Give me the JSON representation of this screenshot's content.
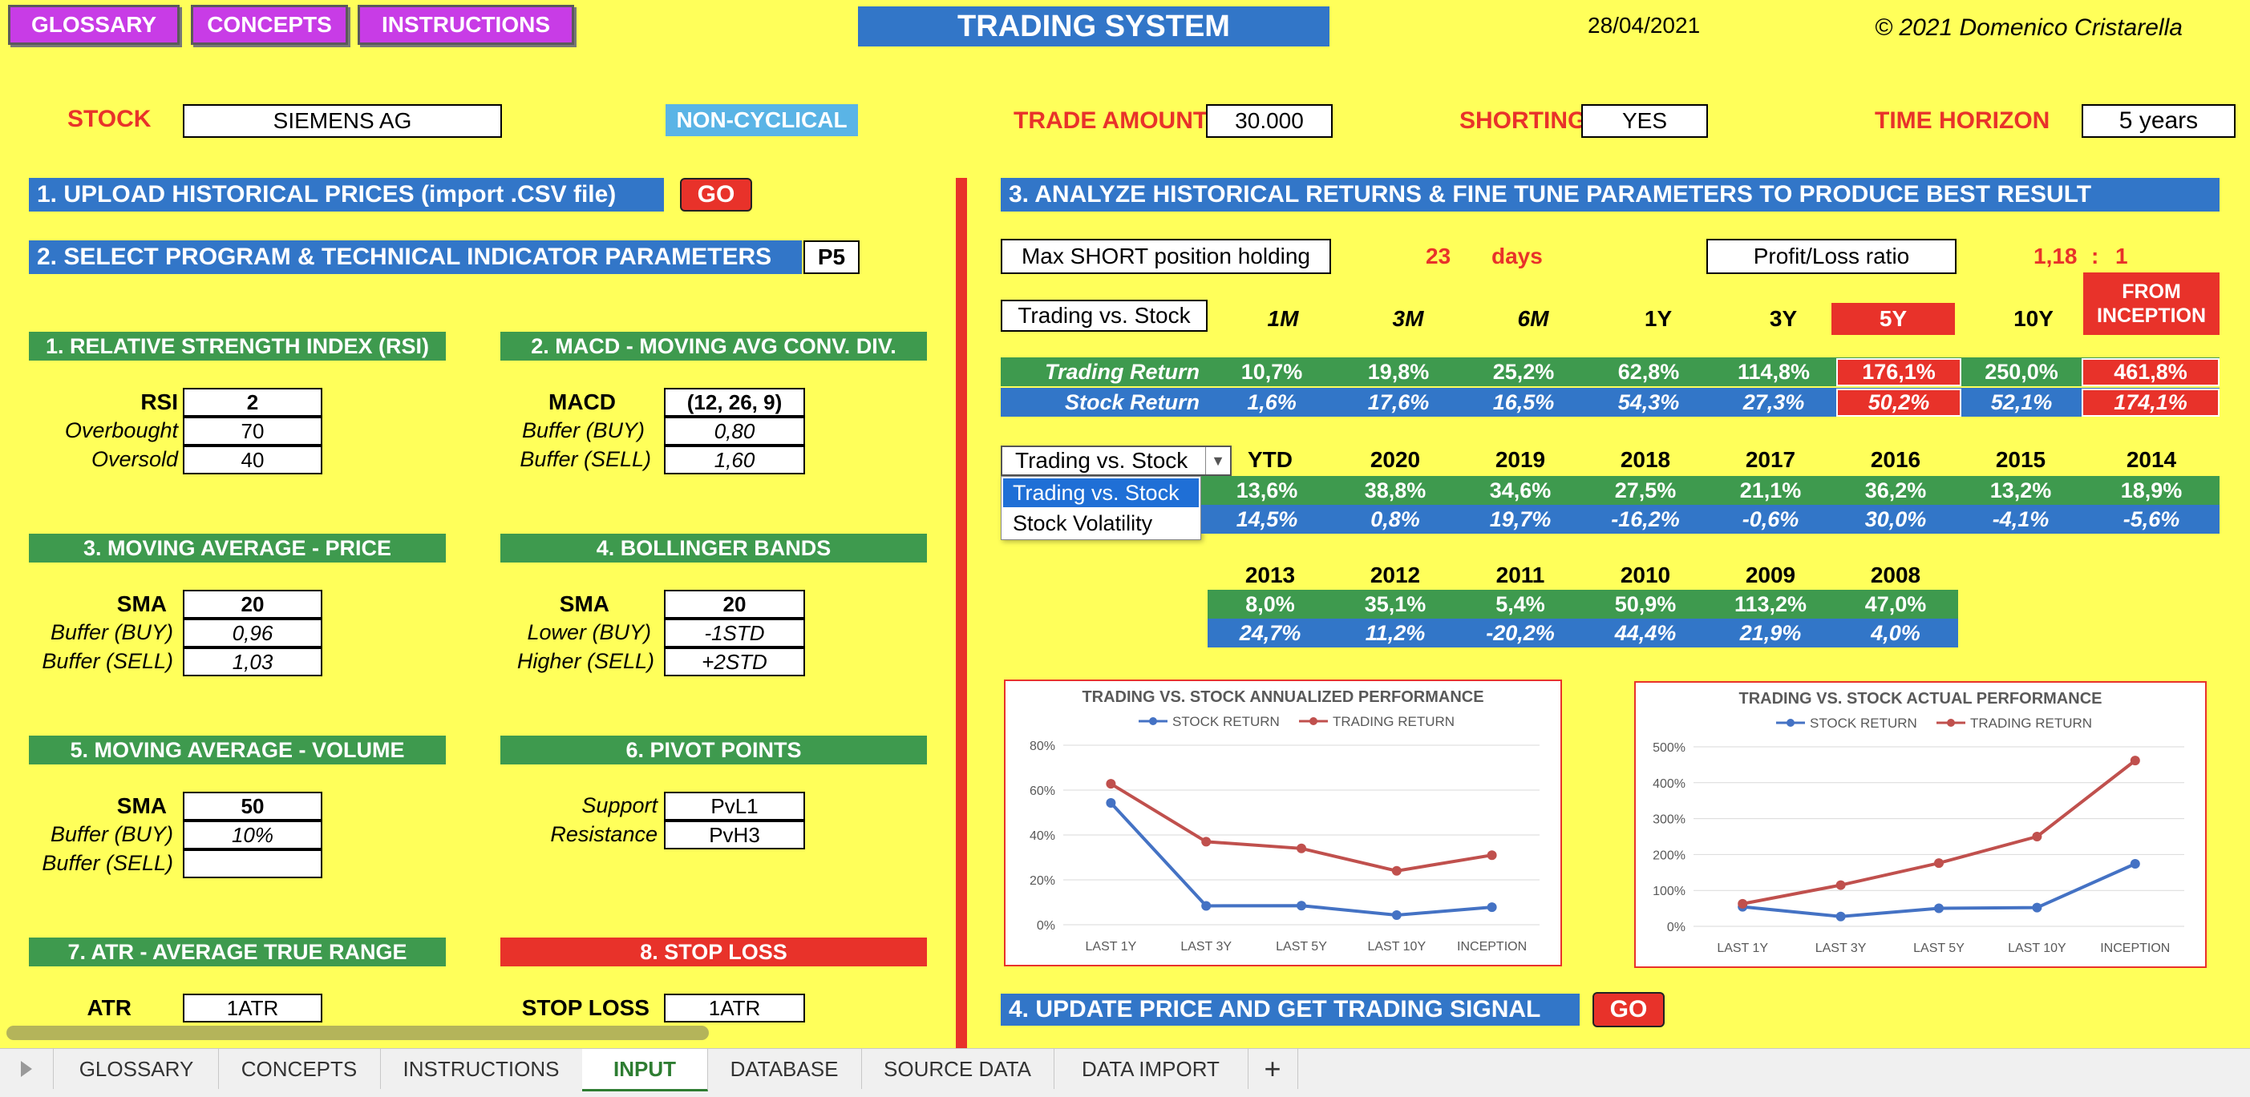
{
  "top_buttons": {
    "glossary": "GLOSSARY",
    "concepts": "CONCEPTS",
    "instructions": "INSTRUCTIONS"
  },
  "title": "TRADING SYSTEM",
  "date": "28/04/2021",
  "copyright": "© 2021 Domenico Cristarella",
  "info": {
    "stock_label": "STOCK",
    "stock_value": "SIEMENS AG",
    "category": "NON-CYCLICAL",
    "trade_amount_label": "TRADE AMOUNT",
    "trade_amount_value": "30.000",
    "shorting_label": "SHORTING",
    "shorting_value": "YES",
    "time_horizon_label": "TIME HORIZON",
    "time_horizon_value": "5 years"
  },
  "step1": {
    "label": "1. UPLOAD HISTORICAL PRICES (import .CSV file)",
    "go": "GO"
  },
  "step2": {
    "label": "2. SELECT PROGRAM & TECHNICAL INDICATOR PARAMETERS",
    "program": "P5"
  },
  "panels": {
    "rsi": {
      "header": "1. RELATIVE STRENGTH INDEX (RSI)",
      "l1": "RSI",
      "v1": "2",
      "l2": "Overbought",
      "v2": "70",
      "l3": "Oversold",
      "v3": "40"
    },
    "macd": {
      "header": "2. MACD - MOVING AVG CONV. DIV.",
      "l1": "MACD",
      "v1": "(12, 26, 9)",
      "l2": "Buffer (BUY)",
      "v2": "0,80",
      "l3": "Buffer (SELL)",
      "v3": "1,60"
    },
    "ma_price": {
      "header": "3. MOVING AVERAGE - PRICE",
      "l1": "SMA",
      "v1": "20",
      "l2": "Buffer (BUY)",
      "v2": "0,96",
      "l3": "Buffer (SELL)",
      "v3": "1,03"
    },
    "bollinger": {
      "header": "4. BOLLINGER BANDS",
      "l1": "SMA",
      "v1": "20",
      "l2": "Lower (BUY)",
      "v2": "-1STD",
      "l3": "Higher (SELL)",
      "v3": "+2STD"
    },
    "ma_volume": {
      "header": "5. MOVING AVERAGE - VOLUME",
      "l1": "SMA",
      "v1": "50",
      "l2": "Buffer (BUY)",
      "v2": "10%",
      "l3": "Buffer (SELL)",
      "v3": ""
    },
    "pivot": {
      "header": "6. PIVOT POINTS",
      "l1": "Support",
      "v1": "PvL1",
      "l2": "Resistance",
      "v2": "PvH3"
    },
    "atr": {
      "header": "7. ATR - AVERAGE TRUE RANGE",
      "l1": "ATR",
      "v1": "1ATR"
    },
    "stoploss": {
      "header": "8. STOP LOSS",
      "l1": "STOP LOSS",
      "v1": "1ATR"
    }
  },
  "step3": {
    "label": "3. ANALYZE HISTORICAL RETURNS & FINE TUNE PARAMETERS TO PRODUCE BEST RESULT"
  },
  "max_short": {
    "label": "Max SHORT position holding",
    "value": "23",
    "unit": "days"
  },
  "pl_ratio": {
    "label": "Profit/Loss ratio",
    "value": "1,18",
    "sep": ":",
    "right": "1"
  },
  "periods": {
    "selector": "Trading vs. Stock",
    "headers": [
      "1M",
      "3M",
      "6M",
      "1Y",
      "3Y",
      "5Y",
      "10Y",
      "FROM INCEPTION"
    ],
    "trading_label": "Trading Return",
    "stock_label": "Stock Return",
    "trading": [
      "10,7%",
      "19,8%",
      "25,2%",
      "62,8%",
      "114,8%",
      "176,1%",
      "250,0%",
      "461,8%"
    ],
    "stock": [
      "1,6%",
      "17,6%",
      "16,5%",
      "54,3%",
      "27,3%",
      "50,2%",
      "52,1%",
      "174,1%"
    ]
  },
  "years1": {
    "dropdown_value": "Trading vs. Stock",
    "options": [
      "Trading vs. Stock",
      "Stock Volatility"
    ],
    "headers": [
      "YTD",
      "2020",
      "2019",
      "2018",
      "2017",
      "2016",
      "2015",
      "2014"
    ],
    "trading": [
      "13,6%",
      "38,8%",
      "34,6%",
      "27,5%",
      "21,1%",
      "36,2%",
      "13,2%",
      "18,9%"
    ],
    "stock": [
      "14,5%",
      "0,8%",
      "19,7%",
      "-16,2%",
      "-0,6%",
      "30,0%",
      "-4,1%",
      "-5,6%"
    ]
  },
  "years2": {
    "headers": [
      "2013",
      "2012",
      "2011",
      "2010",
      "2009",
      "2008"
    ],
    "trading": [
      "8,0%",
      "35,1%",
      "5,4%",
      "50,9%",
      "113,2%",
      "47,0%"
    ],
    "stock": [
      "24,7%",
      "11,2%",
      "-20,2%",
      "44,4%",
      "21,9%",
      "4,0%"
    ]
  },
  "chart_data": [
    {
      "type": "line",
      "title": "TRADING VS. STOCK ANNUALIZED PERFORMANCE",
      "categories": [
        "LAST 1Y",
        "LAST 3Y",
        "LAST 5Y",
        "LAST 10Y",
        "INCEPTION"
      ],
      "series": [
        {
          "name": "STOCK RETURN",
          "color": "#4472c4",
          "values": [
            54.3,
            8.4,
            8.5,
            4.3,
            7.8
          ]
        },
        {
          "name": "TRADING RETURN",
          "color": "#c0504d",
          "values": [
            62.8,
            37.0,
            34.0,
            24.0,
            31.0
          ]
        }
      ],
      "ylim": [
        0,
        80
      ],
      "yticks": [
        "0%",
        "20%",
        "40%",
        "60%",
        "80%"
      ],
      "legend": "top"
    },
    {
      "type": "line",
      "title": "TRADING VS. STOCK ACTUAL PERFORMANCE",
      "categories": [
        "LAST 1Y",
        "LAST 3Y",
        "LAST 5Y",
        "LAST 10Y",
        "INCEPTION"
      ],
      "series": [
        {
          "name": "STOCK RETURN",
          "color": "#4472c4",
          "values": [
            54.3,
            27.3,
            50.2,
            52.1,
            174.1
          ]
        },
        {
          "name": "TRADING RETURN",
          "color": "#c0504d",
          "values": [
            62.8,
            114.8,
            176.1,
            250.0,
            461.8
          ]
        }
      ],
      "ylim": [
        0,
        500
      ],
      "yticks": [
        "0%",
        "100%",
        "200%",
        "300%",
        "400%",
        "500%"
      ],
      "legend": "top"
    }
  ],
  "step4": {
    "label": "4. UPDATE PRICE AND GET TRADING SIGNAL",
    "go": "GO"
  },
  "tabs": [
    "GLOSSARY",
    "CONCEPTS",
    "INSTRUCTIONS",
    "INPUT",
    "DATABASE",
    "SOURCE DATA",
    "DATA IMPORT",
    "+"
  ],
  "active_tab": "INPUT"
}
